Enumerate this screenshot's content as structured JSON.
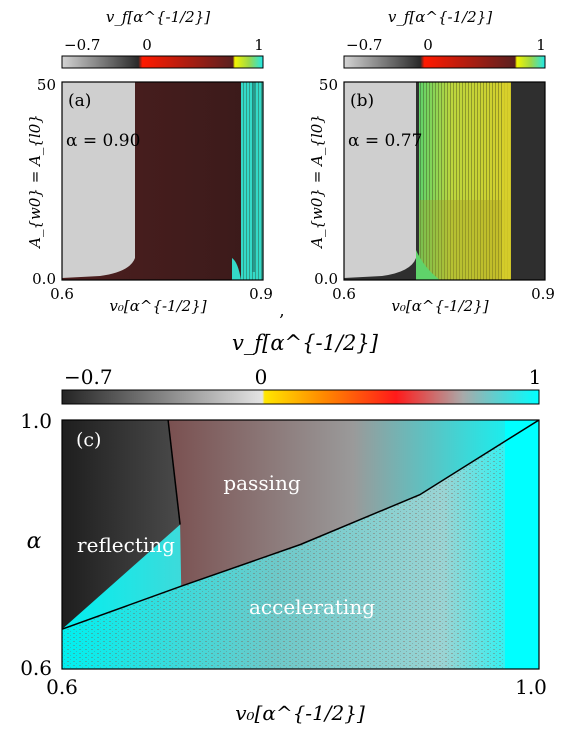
{
  "chart_data": [
    {
      "type": "heatmap",
      "panel_label": "(a)",
      "annotation": "α = 0.90",
      "xlabel": "v₀[α^{-1/2}]",
      "ylabel": "A_{w0} = A_{l0}",
      "xlim": [
        0.6,
        0.9
      ],
      "ylim": [
        0.0,
        50
      ],
      "x_tick_labels": [
        "0.6",
        "0.9"
      ],
      "y_tick_labels": [
        "0.0",
        "50"
      ],
      "colorbar": {
        "label": "v_f[α^{-1/2}]",
        "range": [
          -0.7,
          1
        ],
        "tick_labels": [
          "−0.7",
          "0",
          "1"
        ]
      },
      "regions": [
        {
          "kind": "reflecting",
          "v0_range": [
            0.6,
            0.714
          ],
          "color": "#cfcfcf"
        },
        {
          "kind": "passing",
          "v0_range": [
            0.714,
            0.877
          ],
          "color": "#5a2424"
        },
        {
          "kind": "accelerating",
          "v0_range": [
            0.877,
            0.9
          ],
          "color": "#37e3d3"
        }
      ]
    },
    {
      "type": "heatmap",
      "panel_label": "(b)",
      "annotation": "α = 0.77",
      "xlabel": "v₀[α^{-1/2}]",
      "ylabel": "A_{w0} = A_{l0}",
      "xlim": [
        0.6,
        0.9
      ],
      "ylim": [
        0.0,
        50
      ],
      "x_tick_labels": [
        "0.6",
        "0.9"
      ],
      "y_tick_labels": [
        "0.0",
        "50"
      ],
      "colorbar": {
        "label": "v_f[α^{-1/2}]",
        "range": [
          -0.7,
          1
        ],
        "tick_labels": [
          "−0.7",
          "0",
          "1"
        ]
      },
      "regions": [
        {
          "kind": "reflecting",
          "v0_range": [
            0.6,
            0.713
          ],
          "color": "#cfcfcf"
        },
        {
          "kind": "accelerating",
          "v0_range": [
            0.713,
            0.847
          ],
          "color": "#c9d83a"
        },
        {
          "kind": "reflecting",
          "v0_range": [
            0.847,
            0.9
          ],
          "color": "#2e2e2e"
        }
      ]
    },
    {
      "type": "heatmap",
      "panel_label": "(c)",
      "xlabel": "v₀[α^{-1/2}]",
      "ylabel": "α",
      "xlim": [
        0.6,
        1.0
      ],
      "ylim": [
        0.6,
        1.0
      ],
      "x_tick_labels": [
        "0.6",
        "1.0"
      ],
      "y_tick_labels": [
        "0.6",
        "1.0"
      ],
      "colorbar": {
        "label": "v_f[α^{-1/2}]",
        "range": [
          -0.7,
          1
        ],
        "tick_labels": [
          "−0.7",
          "0",
          "1"
        ]
      },
      "region_labels": [
        "reflecting",
        "passing",
        "accelerating"
      ],
      "boundaries": {
        "reflecting_passing": [
          [
            0.689,
            1.0
          ],
          [
            0.699,
            0.832
          ]
        ],
        "passing_accelerating": [
          [
            0.6,
            0.664
          ],
          [
            0.7,
            0.733
          ],
          [
            0.8,
            0.8
          ],
          [
            0.9,
            0.88
          ],
          [
            1.0,
            1.0
          ]
        ]
      }
    }
  ],
  "separator": ","
}
